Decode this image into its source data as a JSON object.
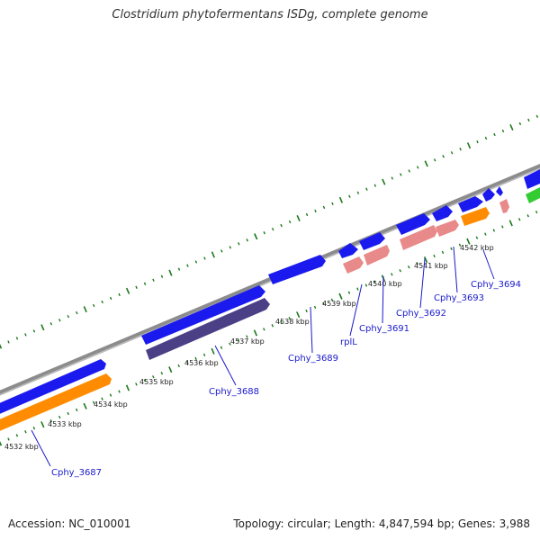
{
  "title": "Clostridium phytofermentans ISDg, complete genome",
  "footer": {
    "accession": "Accession: NC_010001",
    "summary": "Topology: circular; Length: 4,847,594 bp; Genes: 3,988"
  },
  "colors": {
    "backbone": "#8c8c8c",
    "tick": "#1a7a1a",
    "gene_blue": "#1a1aee",
    "gene_orange": "#ff8c00",
    "gene_purple": "#4b3f86",
    "gene_pink": "#e88a8a",
    "gene_green": "#33cc33",
    "label": "#1a1acc"
  },
  "tick_labels": [
    "4532 kbp",
    "4533 kbp",
    "4534 kbp",
    "4535 kbp",
    "4536 kbp",
    "4537 kbp",
    "4538 kbp",
    "4539 kbp",
    "4540 kbp",
    "4541 kbp",
    "4542 kbp"
  ],
  "gene_labels": [
    "Cphy_3687",
    "Cphy_3688",
    "Cphy_3689",
    "rplL",
    "Cphy_3691",
    "Cphy_3692",
    "Cphy_3693",
    "Cphy_3694"
  ]
}
